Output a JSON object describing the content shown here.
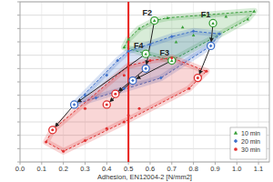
{
  "chart_data": {
    "type": "scatter",
    "x_label": "Adhesion, EN12004-2 [N/mm2]",
    "xlim": [
      0,
      1.15
    ],
    "xticks": [
      {
        "value": 0,
        "label": "0.0"
      },
      0.1,
      0.2,
      0.3,
      0.4,
      0.5,
      0.6,
      0.7,
      0.8,
      0.9,
      {
        "value": 1,
        "label": "1.0"
      },
      1.1
    ],
    "ylim": [
      0,
      12
    ],
    "yticks": [
      0,
      1,
      2,
      3,
      4,
      5,
      6,
      7,
      8,
      9,
      10,
      11,
      12
    ],
    "grid": true,
    "tick_labels": "x",
    "legend": "lower right",
    "vline": {
      "value": 0.5,
      "color": "#e8201c"
    },
    "annotations": [
      "F1",
      "F2",
      "F3",
      "F4"
    ],
    "series": [
      {
        "name": "10 min",
        "color": "#3aa03a",
        "marker": "triangle",
        "x": [
          0.89,
          0.62,
          0.7,
          0.58,
          0.5,
          0.55,
          0.68,
          0.75,
          0.8,
          0.95,
          1.05,
          1.08,
          0.48,
          0.72,
          0.85
        ],
        "y": [
          10.4,
          10.6,
          7.6,
          8.1,
          9.2,
          10.0,
          10.8,
          10.1,
          9.5,
          10.9,
          10.7,
          11.3,
          8.6,
          9.0,
          11.0
        ]
      },
      {
        "name": "20 min",
        "color": "#3d6fc9",
        "marker": "diamond",
        "x": [
          0.88,
          0.58,
          0.52,
          0.25,
          0.3,
          0.4,
          0.45,
          0.5,
          0.6,
          0.7,
          0.8,
          0.92,
          0.48,
          0.65,
          0.35
        ],
        "y": [
          8.7,
          7.0,
          6.1,
          4.3,
          5.0,
          6.5,
          7.6,
          8.3,
          8.8,
          9.4,
          9.8,
          9.6,
          5.5,
          6.3,
          4.8
        ]
      },
      {
        "name": "30 min",
        "color": "#e03030",
        "marker": "circle",
        "x": [
          0.82,
          0.44,
          0.4,
          0.15,
          0.12,
          0.2,
          0.3,
          0.4,
          0.5,
          0.55,
          0.48,
          0.5,
          0.6,
          0.7,
          0.86,
          0.78,
          0.3,
          0.48
        ],
        "y": [
          6.3,
          5.1,
          4.3,
          2.4,
          1.5,
          0.8,
          1.6,
          2.5,
          3.5,
          4.0,
          6.5,
          7.2,
          7.6,
          7.8,
          6.8,
          5.5,
          4.0,
          3.0
        ]
      }
    ]
  }
}
